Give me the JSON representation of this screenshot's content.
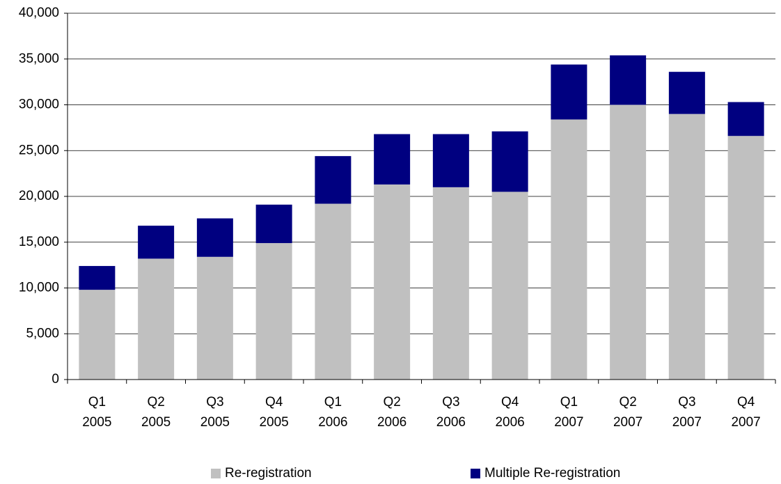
{
  "chart_data": {
    "type": "stacked_bar",
    "categories": [
      "Q1 2005",
      "Q2 2005",
      "Q3 2005",
      "Q4 2005",
      "Q1 2006",
      "Q2 2006",
      "Q3 2006",
      "Q4 2006",
      "Q1 2007",
      "Q2 2007",
      "Q3 2007",
      "Q4 2007"
    ],
    "series": [
      {
        "name": "Re-registration",
        "color": "#c0c0c0",
        "values": [
          9800,
          13200,
          13400,
          14900,
          19200,
          21300,
          21000,
          20500,
          28400,
          30000,
          29000,
          26600
        ]
      },
      {
        "name": "Multiple Re-registration",
        "color": "#000080",
        "values": [
          2600,
          3600,
          4200,
          4200,
          5200,
          5500,
          5800,
          6600,
          6000,
          5400,
          4600,
          3700
        ]
      }
    ],
    "ylim": [
      0,
      40000
    ],
    "yticks": [
      0,
      {
        "value": 5000,
        "label": "5,000"
      },
      {
        "value": 10000,
        "label": "10,000"
      },
      {
        "value": 15000,
        "label": "15,000"
      },
      {
        "value": 20000,
        "label": "20,000"
      },
      {
        "value": 25000,
        "label": "25,000"
      },
      {
        "value": 30000,
        "label": "30,000"
      },
      {
        "value": 35000,
        "label": "35,000"
      },
      {
        "value": 40000,
        "label": "40,000"
      }
    ],
    "grid": true,
    "legend": "bottom"
  }
}
